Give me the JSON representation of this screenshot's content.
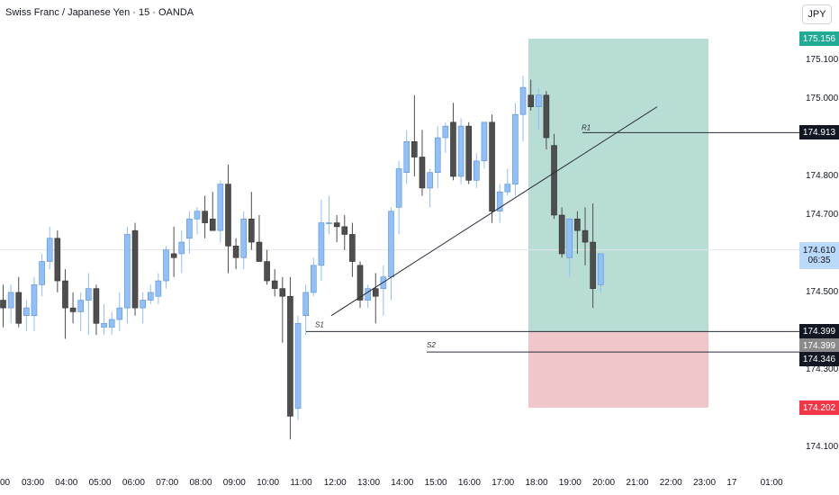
{
  "header": {
    "title": "Swiss Franc / Japanese Yen · 15 · OANDA",
    "currency": "JPY"
  },
  "chart_data": {
    "type": "candlestick",
    "ylim": [
      174.06,
      175.2
    ],
    "y_ticks": [
      "175.100",
      "175.000",
      "174.800",
      "174.700",
      "174.500",
      "174.300",
      "174.100"
    ],
    "x_ticks": [
      "00",
      "03:00",
      "04:00",
      "05:00",
      "06:00",
      "07:00",
      "08:00",
      "09:00",
      "10:00",
      "11:00",
      "12:00",
      "13:00",
      "14:00",
      "15:00",
      "16:00",
      "17:00",
      "18:00",
      "19:00",
      "20:00",
      "21:00",
      "22:00",
      "23:00",
      "17",
      "01:00"
    ],
    "price_labels": {
      "target": "175.156",
      "r1": "174.913",
      "current": "174.610",
      "countdown": "06:35",
      "s1": "174.399",
      "s1_grey": "174.399",
      "s2": "174.346",
      "stop": "174.202"
    },
    "levels": [
      {
        "name": "R1",
        "value": 174.913
      },
      {
        "name": "S1",
        "value": 174.399
      },
      {
        "name": "S2",
        "value": 174.346
      }
    ],
    "position": {
      "entry": 174.399,
      "target": 175.156,
      "stop": 174.202
    },
    "trendline": {
      "from": 174.44,
      "to": 174.98
    },
    "candles": [
      {
        "o": 174.48,
        "h": 174.52,
        "l": 174.41,
        "c": 174.46
      },
      {
        "o": 174.46,
        "h": 174.52,
        "l": 174.42,
        "c": 174.5
      },
      {
        "o": 174.5,
        "h": 174.54,
        "l": 174.41,
        "c": 174.42
      },
      {
        "o": 174.44,
        "h": 174.48,
        "l": 174.4,
        "c": 174.46
      },
      {
        "o": 174.44,
        "h": 174.54,
        "l": 174.4,
        "c": 174.52
      },
      {
        "o": 174.52,
        "h": 174.6,
        "l": 174.49,
        "c": 174.58
      },
      {
        "o": 174.58,
        "h": 174.67,
        "l": 174.56,
        "c": 174.64
      },
      {
        "o": 174.64,
        "h": 174.66,
        "l": 174.5,
        "c": 174.53
      },
      {
        "o": 174.53,
        "h": 174.56,
        "l": 174.38,
        "c": 174.46
      },
      {
        "o": 174.46,
        "h": 174.5,
        "l": 174.42,
        "c": 174.45
      },
      {
        "o": 174.45,
        "h": 174.5,
        "l": 174.4,
        "c": 174.48
      },
      {
        "o": 174.48,
        "h": 174.55,
        "l": 174.39,
        "c": 174.51
      },
      {
        "o": 174.51,
        "h": 174.52,
        "l": 174.39,
        "c": 174.42
      },
      {
        "o": 174.41,
        "h": 174.47,
        "l": 174.39,
        "c": 174.42
      },
      {
        "o": 174.41,
        "h": 174.45,
        "l": 174.39,
        "c": 174.43
      },
      {
        "o": 174.43,
        "h": 174.5,
        "l": 174.4,
        "c": 174.46
      },
      {
        "o": 174.46,
        "h": 174.67,
        "l": 174.42,
        "c": 174.65
      },
      {
        "o": 174.66,
        "h": 174.68,
        "l": 174.44,
        "c": 174.46
      },
      {
        "o": 174.46,
        "h": 174.5,
        "l": 174.42,
        "c": 174.48
      },
      {
        "o": 174.48,
        "h": 174.52,
        "l": 174.47,
        "c": 174.5
      },
      {
        "o": 174.49,
        "h": 174.55,
        "l": 174.47,
        "c": 174.53
      },
      {
        "o": 174.53,
        "h": 174.62,
        "l": 174.51,
        "c": 174.61
      },
      {
        "o": 174.6,
        "h": 174.67,
        "l": 174.54,
        "c": 174.59
      },
      {
        "o": 174.6,
        "h": 174.66,
        "l": 174.55,
        "c": 174.63
      },
      {
        "o": 174.64,
        "h": 174.71,
        "l": 174.6,
        "c": 174.69
      },
      {
        "o": 174.69,
        "h": 174.72,
        "l": 174.65,
        "c": 174.71
      },
      {
        "o": 174.71,
        "h": 174.75,
        "l": 174.64,
        "c": 174.68
      },
      {
        "o": 174.69,
        "h": 174.76,
        "l": 174.66,
        "c": 174.66
      },
      {
        "o": 174.66,
        "h": 174.79,
        "l": 174.63,
        "c": 174.78
      },
      {
        "o": 174.78,
        "h": 174.83,
        "l": 174.55,
        "c": 174.62
      },
      {
        "o": 174.62,
        "h": 174.64,
        "l": 174.56,
        "c": 174.59
      },
      {
        "o": 174.59,
        "h": 174.71,
        "l": 174.56,
        "c": 174.69
      },
      {
        "o": 174.69,
        "h": 174.76,
        "l": 174.61,
        "c": 174.63
      },
      {
        "o": 174.63,
        "h": 174.7,
        "l": 174.58,
        "c": 174.58
      },
      {
        "o": 174.58,
        "h": 174.61,
        "l": 174.52,
        "c": 174.53
      },
      {
        "o": 174.53,
        "h": 174.56,
        "l": 174.49,
        "c": 174.51
      },
      {
        "o": 174.51,
        "h": 174.54,
        "l": 174.37,
        "c": 174.49
      },
      {
        "o": 174.49,
        "h": 174.54,
        "l": 174.12,
        "c": 174.18
      },
      {
        "o": 174.2,
        "h": 174.44,
        "l": 174.17,
        "c": 174.42
      },
      {
        "o": 174.44,
        "h": 174.52,
        "l": 174.39,
        "c": 174.5
      },
      {
        "o": 174.5,
        "h": 174.59,
        "l": 174.49,
        "c": 174.57
      },
      {
        "o": 174.57,
        "h": 174.74,
        "l": 174.53,
        "c": 174.68
      },
      {
        "o": 174.68,
        "h": 174.75,
        "l": 174.65,
        "c": 174.68
      },
      {
        "o": 174.68,
        "h": 174.7,
        "l": 174.63,
        "c": 174.67
      },
      {
        "o": 174.67,
        "h": 174.7,
        "l": 174.61,
        "c": 174.65
      },
      {
        "o": 174.65,
        "h": 174.68,
        "l": 174.54,
        "c": 174.58
      },
      {
        "o": 174.57,
        "h": 174.58,
        "l": 174.46,
        "c": 174.48
      },
      {
        "o": 174.48,
        "h": 174.52,
        "l": 174.46,
        "c": 174.51
      },
      {
        "o": 174.51,
        "h": 174.55,
        "l": 174.42,
        "c": 174.49
      },
      {
        "o": 174.51,
        "h": 174.57,
        "l": 174.44,
        "c": 174.54
      },
      {
        "o": 174.54,
        "h": 174.72,
        "l": 174.48,
        "c": 174.71
      },
      {
        "o": 174.72,
        "h": 174.84,
        "l": 174.65,
        "c": 174.82
      },
      {
        "o": 174.81,
        "h": 174.92,
        "l": 174.78,
        "c": 174.89
      },
      {
        "o": 174.89,
        "h": 175.01,
        "l": 174.8,
        "c": 174.85
      },
      {
        "o": 174.85,
        "h": 174.92,
        "l": 174.75,
        "c": 174.77
      },
      {
        "o": 174.77,
        "h": 174.82,
        "l": 174.72,
        "c": 174.81
      },
      {
        "o": 174.81,
        "h": 174.93,
        "l": 174.77,
        "c": 174.9
      },
      {
        "o": 174.9,
        "h": 174.94,
        "l": 174.86,
        "c": 174.93
      },
      {
        "o": 174.94,
        "h": 174.99,
        "l": 174.79,
        "c": 174.8
      },
      {
        "o": 174.8,
        "h": 174.95,
        "l": 174.78,
        "c": 174.93
      },
      {
        "o": 174.93,
        "h": 174.94,
        "l": 174.78,
        "c": 174.79
      },
      {
        "o": 174.79,
        "h": 174.86,
        "l": 174.77,
        "c": 174.84
      },
      {
        "o": 174.84,
        "h": 174.94,
        "l": 174.82,
        "c": 174.94
      },
      {
        "o": 174.94,
        "h": 174.96,
        "l": 174.68,
        "c": 174.71
      },
      {
        "o": 174.71,
        "h": 174.78,
        "l": 174.68,
        "c": 174.76
      },
      {
        "o": 174.76,
        "h": 174.82,
        "l": 174.75,
        "c": 174.78
      },
      {
        "o": 174.78,
        "h": 174.99,
        "l": 174.75,
        "c": 174.96
      },
      {
        "o": 174.96,
        "h": 175.06,
        "l": 174.89,
        "c": 175.03
      },
      {
        "o": 175.01,
        "h": 175.05,
        "l": 174.97,
        "c": 174.98
      },
      {
        "o": 174.98,
        "h": 175.03,
        "l": 174.92,
        "c": 175.01
      },
      {
        "o": 175.01,
        "h": 175.02,
        "l": 174.87,
        "c": 174.9
      },
      {
        "o": 174.88,
        "h": 174.91,
        "l": 174.69,
        "c": 174.7
      },
      {
        "o": 174.7,
        "h": 174.72,
        "l": 174.59,
        "c": 174.6
      },
      {
        "o": 174.59,
        "h": 174.68,
        "l": 174.54,
        "c": 174.69
      },
      {
        "o": 174.69,
        "h": 174.71,
        "l": 174.6,
        "c": 174.66
      },
      {
        "o": 174.66,
        "h": 174.72,
        "l": 174.57,
        "c": 174.63
      },
      {
        "o": 174.63,
        "h": 174.73,
        "l": 174.46,
        "c": 174.51
      },
      {
        "o": 174.52,
        "h": 174.6,
        "l": 174.5,
        "c": 174.6
      }
    ]
  },
  "colors": {
    "up": "#90bff9",
    "down": "#4e4e4e",
    "wick_up": "#90bff9",
    "wick_down": "#4e4e4e",
    "profit_zone": "#b7ddd5",
    "loss_zone": "#f0c6cb",
    "target_label": "#22ab94",
    "stop_label": "#f23645",
    "current_label": "#bbd9fb",
    "dark_label": "#131722",
    "grey_label": "#8a8a8a"
  }
}
